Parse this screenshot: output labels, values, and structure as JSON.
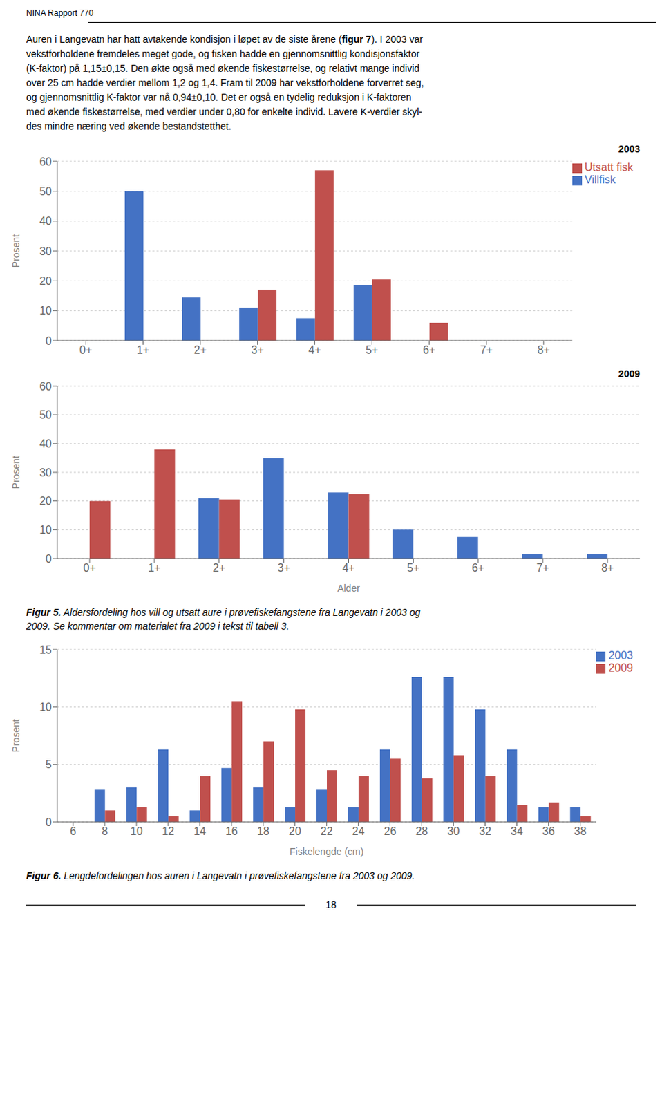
{
  "header_text": "NINA Rapport 770",
  "body_bold": "figur 7",
  "body_lines": [
    "Auren i Langevatn har hatt avtakende kondisjon i løpet av de siste årene (figur 7). I 2003 var",
    "vekstforholdene fremdeles meget gode, og fisken hadde en gjennomsnittlig kondisjonsfaktor",
    "(K-faktor) på 1,15±0,15. Den økte også med økende fiskestørrelse, og relativt mange individ",
    "over 25 cm hadde verdier mellom 1,2 og 1,4. Fram til 2009 har vekstforholdene forverret seg,",
    "og gjennomsnittlig K-faktor var nå 0,94±0,10. Det er også en tydelig reduksjon i K-faktoren",
    "med økende fiskestørrelse, med verdier under 0,80 for enkelte individ. Lavere K-verdier skyl-",
    "des mindre næring ved økende bestandstetthet."
  ],
  "page_number": "18",
  "chart_data": [
    {
      "type": "bar",
      "annotations": [
        "2003"
      ],
      "categories": [
        "0+",
        "1+",
        "2+",
        "3+",
        "4+",
        "5+",
        "6+",
        "7+",
        "8+"
      ],
      "series": [
        {
          "name": "Villfisk",
          "color": "#4472C4",
          "values": [
            0,
            50,
            14.5,
            11,
            7.5,
            18.5,
            0,
            0,
            0
          ]
        },
        {
          "name": "Utsatt fisk",
          "color": "#C0504D",
          "values": [
            0,
            0,
            0,
            17,
            57,
            20.5,
            6,
            0,
            0
          ]
        }
      ],
      "y_label": "Prosent",
      "ylim": [
        0,
        60
      ],
      "yticks": [
        0,
        10,
        20,
        30,
        40,
        50,
        60
      ],
      "grid": true,
      "legend": "upper right"
    },
    {
      "type": "bar",
      "annotations": [
        "2009"
      ],
      "categories": [
        "0+",
        "1+",
        "2+",
        "3+",
        "4+",
        "5+",
        "6+",
        "7+",
        "8+"
      ],
      "series": [
        {
          "color": "#4472C4",
          "values": [
            0,
            0,
            21,
            35,
            23,
            10,
            7.5,
            1.5,
            1.5
          ]
        },
        {
          "color": "#C0504D",
          "values": [
            20,
            38,
            20.5,
            0,
            22.5,
            0,
            0,
            0,
            0
          ]
        }
      ],
      "x_label": "Alder",
      "y_label": "Prosent",
      "ylim": [
        0,
        60
      ],
      "yticks": [
        0,
        10,
        20,
        30,
        40,
        50,
        60
      ],
      "grid": true,
      "caption_bold": "Figur 5.",
      "caption": [
        "Figur 5. Aldersfordeling hos vill og utsatt aure i prøvefiskefangstene fra Langevatn i 2003 og",
        "2009. Se kommentar om materialet fra 2009 i tekst til tabell 3."
      ]
    },
    {
      "type": "bar",
      "categories": [
        6,
        8,
        10,
        12,
        14,
        16,
        18,
        20,
        22,
        24,
        26,
        28,
        30,
        32,
        34,
        36,
        38
      ],
      "series": [
        {
          "name": "2003",
          "color": "#4472C4",
          "values": [
            0,
            2.8,
            3.0,
            6.3,
            1.0,
            4.7,
            3.0,
            1.3,
            2.8,
            1.3,
            6.3,
            12.6,
            12.6,
            9.8,
            6.3,
            1.3,
            1.3
          ]
        },
        {
          "name": "2009",
          "color": "#C0504D",
          "values": [
            0,
            1.0,
            1.3,
            0.5,
            4.0,
            10.5,
            7.0,
            9.8,
            4.5,
            4.0,
            5.5,
            3.8,
            5.8,
            4.0,
            1.5,
            1.7,
            0.5
          ]
        }
      ],
      "x_label": "Fiskelengde (cm)",
      "y_label": "Prosent",
      "ylim": [
        0,
        15
      ],
      "yticks": [
        0,
        5,
        10,
        15
      ],
      "grid": true,
      "legend": "upper right",
      "caption_bold": "Figur 6.",
      "caption": [
        "Figur 6. Lengdefordelingen hos auren i Langevatn i prøvefiskefangstene fra 2003 og 2009."
      ]
    }
  ]
}
